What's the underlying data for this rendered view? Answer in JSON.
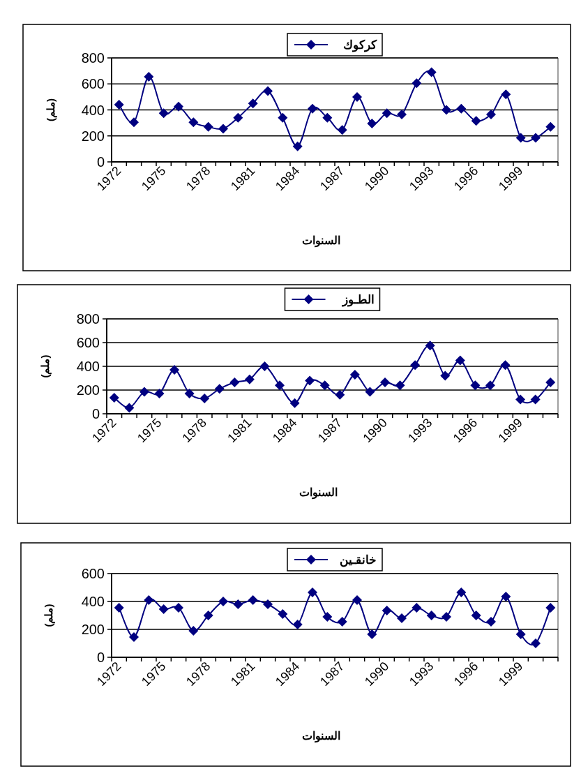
{
  "chart_data": [
    {
      "type": "line",
      "xlabel": "السنوات",
      "ylabel": "(ملم)",
      "categories": [
        "1972",
        null,
        null,
        "1975",
        null,
        null,
        "1978",
        null,
        null,
        "1981",
        null,
        null,
        "1984",
        null,
        null,
        "1987",
        null,
        null,
        "1990",
        null,
        null,
        "1993",
        null,
        null,
        "1996",
        null,
        null,
        "1999",
        null,
        null
      ],
      "ylim": [
        0,
        800
      ],
      "yticks": [
        0,
        200,
        400,
        600,
        800
      ],
      "grid": "y",
      "legend": "top",
      "marker": "diamond",
      "line_style": "solid",
      "series": [
        {
          "name": "كركوك",
          "color": "#000080",
          "values": [
            440,
            305,
            655,
            375,
            425,
            305,
            270,
            255,
            340,
            450,
            545,
            340,
            120,
            410,
            340,
            245,
            500,
            295,
            375,
            365,
            605,
            690,
            400,
            410,
            315,
            365,
            520,
            185,
            185,
            270
          ]
        }
      ]
    },
    {
      "type": "line",
      "xlabel": "السنوات",
      "ylabel": "(ملم)",
      "categories": [
        "1972",
        null,
        null,
        "1975",
        null,
        null,
        "1978",
        null,
        null,
        "1981",
        null,
        null,
        "1984",
        null,
        null,
        "1987",
        null,
        null,
        "1990",
        null,
        null,
        "1993",
        null,
        null,
        "1996",
        null,
        null,
        "1999",
        null,
        null
      ],
      "ylim": [
        0,
        800
      ],
      "yticks": [
        0,
        200,
        400,
        600,
        800
      ],
      "grid": "y",
      "legend": "top",
      "marker": "diamond",
      "line_style": "solid",
      "series": [
        {
          "name": "الطـوز",
          "color": "#000080",
          "values": [
            135,
            50,
            185,
            170,
            370,
            170,
            130,
            210,
            265,
            290,
            400,
            240,
            90,
            280,
            240,
            160,
            330,
            185,
            265,
            240,
            410,
            575,
            320,
            450,
            240,
            240,
            410,
            120,
            120,
            265
          ]
        }
      ]
    },
    {
      "type": "line",
      "xlabel": "السنوات",
      "ylabel": "(ملم)",
      "categories": [
        "1972",
        null,
        null,
        "1975",
        null,
        null,
        "1978",
        null,
        null,
        "1981",
        null,
        null,
        "1984",
        null,
        null,
        "1987",
        null,
        null,
        "1990",
        null,
        null,
        "1993",
        null,
        null,
        "1996",
        null,
        null,
        "1999",
        null,
        null
      ],
      "ylim": [
        0,
        600
      ],
      "yticks": [
        0,
        200,
        400,
        600
      ],
      "grid": "y",
      "legend": "top",
      "marker": "diamond",
      "line_style": "solid",
      "series": [
        {
          "name": "خانقـين",
          "color": "#000080",
          "values": [
            355,
            145,
            410,
            345,
            355,
            190,
            300,
            400,
            380,
            410,
            380,
            310,
            235,
            465,
            290,
            255,
            410,
            165,
            335,
            280,
            355,
            300,
            290,
            465,
            300,
            255,
            435,
            165,
            100,
            355
          ]
        }
      ]
    }
  ]
}
